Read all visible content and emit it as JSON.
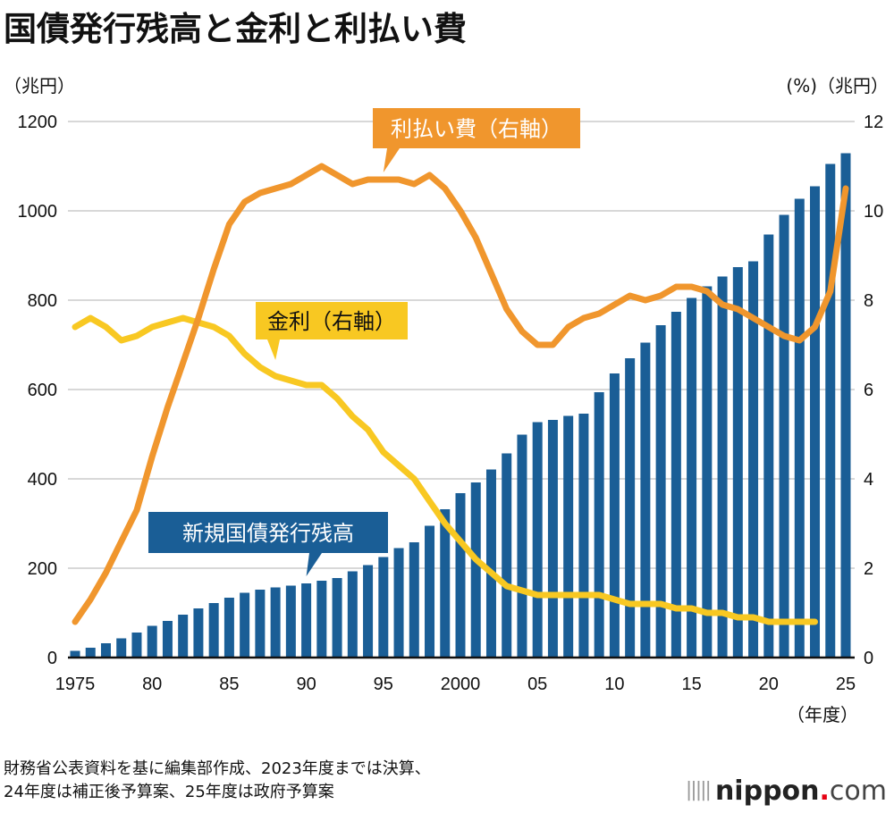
{
  "chart_data": {
    "type": "bar",
    "title": "国債発行残高と金利と利払い費",
    "left_axis_unit": "（兆円）",
    "right_axis_unit": "(%)（兆円）",
    "x_unit": "（年度）",
    "xlabel": "年度",
    "ylabel_left": "兆円",
    "ylabel_right": "% / 兆円",
    "ylim_left": [
      0,
      1200
    ],
    "ylim_right": [
      0,
      12
    ],
    "yticks_left": [
      "0",
      "200",
      "400",
      "600",
      "800",
      "1000",
      "1200"
    ],
    "yticks_right": [
      "0",
      "2",
      "4",
      "6",
      "8",
      "10",
      "12"
    ],
    "xtick_labels": [
      {
        "year": 1975,
        "label": "1975"
      },
      {
        "year": 1980,
        "label": "80"
      },
      {
        "year": 1985,
        "label": "85"
      },
      {
        "year": 1990,
        "label": "90"
      },
      {
        "year": 1995,
        "label": "95"
      },
      {
        "year": 2000,
        "label": "2000"
      },
      {
        "year": 2005,
        "label": "05"
      },
      {
        "year": 2010,
        "label": "10"
      },
      {
        "year": 2015,
        "label": "15"
      },
      {
        "year": 2020,
        "label": "20"
      },
      {
        "year": 2025,
        "label": "25"
      }
    ],
    "grid": true,
    "x": [
      1975,
      1976,
      1977,
      1978,
      1979,
      1980,
      1981,
      1982,
      1983,
      1984,
      1985,
      1986,
      1987,
      1988,
      1989,
      1990,
      1991,
      1992,
      1993,
      1994,
      1995,
      1996,
      1997,
      1998,
      1999,
      2000,
      2001,
      2002,
      2003,
      2004,
      2005,
      2006,
      2007,
      2008,
      2009,
      2010,
      2011,
      2012,
      2013,
      2014,
      2015,
      2016,
      2017,
      2018,
      2019,
      2020,
      2021,
      2022,
      2023,
      2024,
      2025
    ],
    "series": [
      {
        "name": "新規国債発行残高",
        "type": "bar",
        "axis": "left",
        "color": "#1a5e96",
        "values": [
          15,
          22,
          32,
          43,
          56,
          71,
          82,
          96,
          110,
          122,
          134,
          145,
          152,
          157,
          161,
          166,
          172,
          178,
          193,
          207,
          225,
          245,
          258,
          295,
          332,
          368,
          392,
          421,
          457,
          499,
          527,
          532,
          541,
          546,
          594,
          636,
          670,
          705,
          744,
          774,
          805,
          831,
          853,
          874,
          887,
          947,
          991,
          1027,
          1055,
          1105,
          1129
        ]
      },
      {
        "name": "利払い費（右軸）",
        "type": "line",
        "axis": "right",
        "color": "#f0962d",
        "values": [
          0.8,
          1.3,
          1.9,
          2.6,
          3.3,
          4.5,
          5.6,
          6.6,
          7.6,
          8.7,
          9.7,
          10.2,
          10.4,
          10.5,
          10.6,
          10.8,
          11.0,
          10.8,
          10.6,
          10.7,
          10.7,
          10.7,
          10.6,
          10.8,
          10.5,
          10.0,
          9.4,
          8.6,
          7.8,
          7.3,
          7.0,
          7.0,
          7.4,
          7.6,
          7.7,
          7.9,
          8.1,
          8.0,
          8.1,
          8.3,
          8.3,
          8.2,
          7.9,
          7.8,
          7.6,
          7.4,
          7.2,
          7.1,
          7.4,
          8.2,
          10.5
        ]
      },
      {
        "name": "金利（右軸）",
        "type": "line",
        "axis": "right",
        "color": "#f8c822",
        "values": [
          7.4,
          7.6,
          7.4,
          7.1,
          7.2,
          7.4,
          7.5,
          7.6,
          7.5,
          7.4,
          7.2,
          6.8,
          6.5,
          6.3,
          6.2,
          6.1,
          6.1,
          5.8,
          5.4,
          5.1,
          4.6,
          4.3,
          4.0,
          3.5,
          3.0,
          2.6,
          2.2,
          1.9,
          1.6,
          1.5,
          1.4,
          1.4,
          1.4,
          1.4,
          1.4,
          1.3,
          1.2,
          1.2,
          1.2,
          1.1,
          1.1,
          1.0,
          1.0,
          0.9,
          0.9,
          0.8,
          0.8,
          0.8,
          0.8,
          null,
          null
        ]
      }
    ],
    "annotations": [
      {
        "text": "利払い費（右軸）",
        "series": "利払い費（右軸）",
        "anchor_year": 1995,
        "anchor_value": 10.7
      },
      {
        "text": "金利（右軸）",
        "series": "金利（右軸）",
        "anchor_year": 1988,
        "anchor_value": 6.5
      },
      {
        "text": "新規国債発行残高",
        "series": "新規国債発行残高",
        "anchor_year": 1990,
        "anchor_value": 166
      }
    ],
    "legend": "none"
  },
  "footer": {
    "source_line1": "財務省公表資料を基に編集部作成、2023年度までは決算、",
    "source_line2": "24年度は補正後予算案、25年度は政府予算案",
    "logo_bars": "|||||",
    "logo_name": "nippon",
    "logo_dot": ".",
    "logo_tld": "com"
  }
}
